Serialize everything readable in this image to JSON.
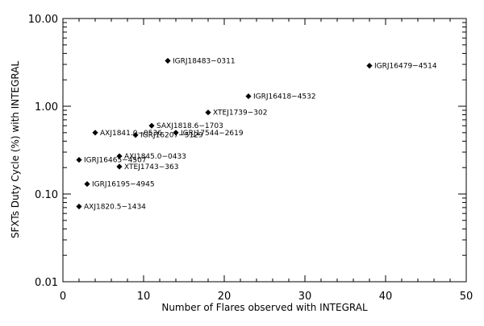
{
  "chart_data": {
    "type": "scatter",
    "title": "",
    "xlabel": "Number of Flares observed with INTEGRAL",
    "ylabel": "SFXTs Duty Cycle (%) with INTEGRAL",
    "xlim": [
      0,
      50
    ],
    "ylim": [
      0.01,
      10
    ],
    "yscale": "log",
    "grid": false,
    "x_ticks": [
      0,
      10,
      20,
      30,
      40,
      50
    ],
    "x_tick_labels": [
      "0",
      "10",
      "20",
      "30",
      "40",
      "50"
    ],
    "y_ticks": [
      0.01,
      0.1,
      1,
      10
    ],
    "y_tick_labels": [
      "0.01",
      "0.10",
      "1.00",
      "10.00"
    ],
    "points": [
      {
        "x": 13,
        "y": 3.3,
        "label": "IGRJ18483−0311"
      },
      {
        "x": 38,
        "y": 2.9,
        "label": "IGRJ16479−4514"
      },
      {
        "x": 23,
        "y": 1.3,
        "label": "IGRJ16418−4532"
      },
      {
        "x": 18,
        "y": 0.85,
        "label": "XTEJ1739−302"
      },
      {
        "x": 11,
        "y": 0.6,
        "label": "SAXJ1818.6−1703"
      },
      {
        "x": 14,
        "y": 0.5,
        "label": "IGRJ17544−2619"
      },
      {
        "x": 4,
        "y": 0.5,
        "label": "AXJ1841.0−0536"
      },
      {
        "x": 9,
        "y": 0.47,
        "label": "IGRJ16207−5129"
      },
      {
        "x": 7,
        "y": 0.27,
        "label": "AXJ1845.0−0433"
      },
      {
        "x": 2,
        "y": 0.245,
        "label": "IGRJ16465−4507"
      },
      {
        "x": 7,
        "y": 0.205,
        "label": "XTEJ1743−363"
      },
      {
        "x": 3,
        "y": 0.13,
        "label": "IGRJ16195−4945"
      },
      {
        "x": 2,
        "y": 0.072,
        "label": "AXJ1820.5−1434"
      }
    ]
  }
}
